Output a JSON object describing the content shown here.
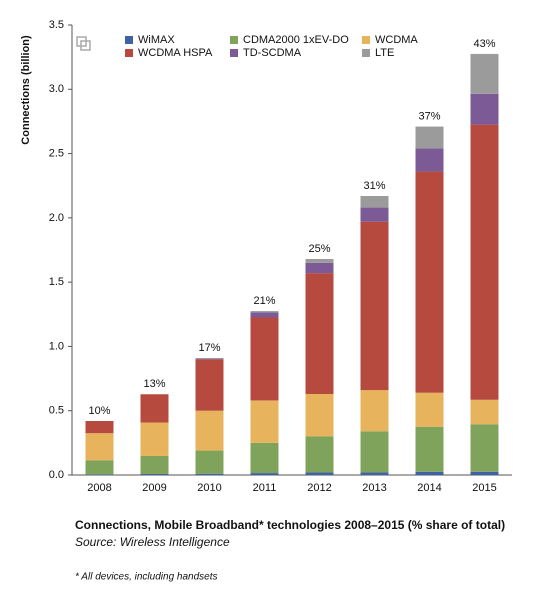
{
  "chart_data": {
    "type": "stacked_bar",
    "title": "Connections, Mobile Broadband* technologies 2008–2015 (% share of total)",
    "subtitle": "Source: Wireless Intelligence",
    "footnote": "* All devices, including handsets",
    "y_label": "Connections (billion)",
    "categories": [
      "2008",
      "2009",
      "2010",
      "2011",
      "2012",
      "2013",
      "2014",
      "2015"
    ],
    "series": [
      {
        "name": "WiMAX",
        "color": "#3d63a6",
        "values": [
          0.005,
          0.008,
          0.01,
          0.015,
          0.02,
          0.02,
          0.025,
          0.025
        ]
      },
      {
        "name": "CDMA2000 1xEV-DO",
        "color": "#80a35b",
        "values": [
          0.11,
          0.14,
          0.18,
          0.235,
          0.28,
          0.32,
          0.35,
          0.37
        ]
      },
      {
        "name": "WCDMA",
        "color": "#e7b35c",
        "values": [
          0.21,
          0.26,
          0.31,
          0.33,
          0.33,
          0.32,
          0.265,
          0.19
        ]
      },
      {
        "name": "WCDMA HSPA",
        "color": "#b64a3f",
        "values": [
          0.095,
          0.22,
          0.4,
          0.645,
          0.94,
          1.31,
          1.72,
          2.14
        ]
      },
      {
        "name": "TD-SCDMA",
        "color": "#7b5a95",
        "values": [
          0,
          0,
          0.005,
          0.04,
          0.08,
          0.11,
          0.18,
          0.24
        ]
      },
      {
        "name": "LTE",
        "color": "#9b9b9b",
        "values": [
          0,
          0,
          0.005,
          0.01,
          0.03,
          0.09,
          0.17,
          0.31
        ]
      }
    ],
    "annotations": [
      "10%",
      "13%",
      "17%",
      "21%",
      "25%",
      "31%",
      "37%",
      "43%"
    ],
    "ylim": [
      0,
      3.5
    ],
    "yticks": [
      {
        "value": 0,
        "label": "0.0"
      },
      0.5,
      {
        "value": 1,
        "label": "1.0"
      },
      1.5,
      {
        "value": 2,
        "label": "2.0"
      },
      2.5,
      {
        "value": 3,
        "label": "3.0"
      },
      3.5
    ],
    "grid": false
  }
}
